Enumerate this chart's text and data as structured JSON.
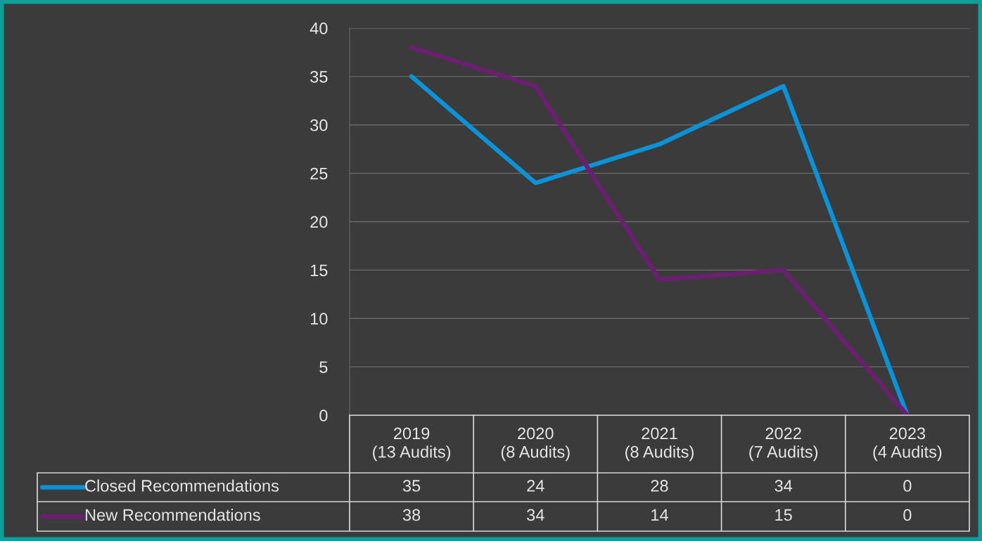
{
  "chart_data": {
    "type": "line",
    "categories": [
      "2019\n(13 Audits)",
      "2020\n(8 Audits)",
      "2021\n(8 Audits)",
      "2022\n(7 Audits)",
      "2023\n(4 Audits)"
    ],
    "series": [
      {
        "name": "Closed Recommendations",
        "color": "#0b92d8",
        "values": [
          35,
          24,
          28,
          34,
          0
        ]
      },
      {
        "name": "New Recommendations",
        "color": "#6c1f72",
        "values": [
          38,
          34,
          14,
          15,
          0
        ]
      }
    ],
    "ylim": [
      0,
      40
    ],
    "yticks": [
      0,
      5,
      10,
      15,
      20,
      25,
      30,
      35,
      40
    ],
    "grid": "y",
    "data_labels": true,
    "legend": "bottom left",
    "marker": "none",
    "line_style": "solid"
  }
}
